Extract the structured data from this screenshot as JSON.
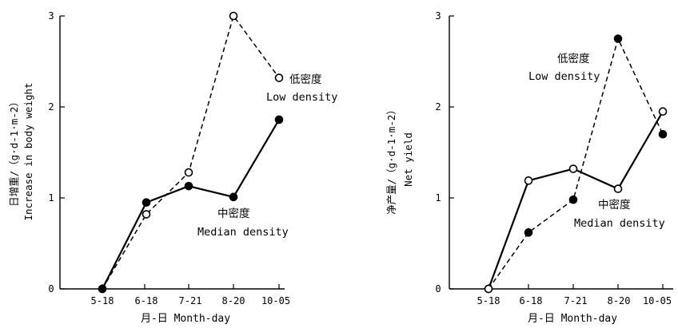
{
  "chart_data": [
    {
      "type": "line",
      "categories": [
        "5-18",
        "6-18",
        "7-21",
        "8-20",
        "10-05"
      ],
      "xlabel": "月-日 Month-day",
      "ylabel_cn": "日增重/（g·d-1·m-2）",
      "ylabel_en": "Increase in body weight",
      "ylim": [
        0,
        3
      ],
      "yticks": [
        "0",
        "1",
        "2",
        "3"
      ],
      "series": [
        {
          "name_cn": "低密度",
          "name_en": "Low density",
          "style": "dashed",
          "marker": "open-circle",
          "values": [
            0,
            0.82,
            1.28,
            3.0,
            2.32
          ]
        },
        {
          "name_cn": "中密度",
          "name_en": "Median density",
          "style": "solid",
          "marker": "filled-circle",
          "values": [
            0,
            0.95,
            1.13,
            1.01,
            1.86
          ]
        }
      ]
    },
    {
      "type": "line",
      "categories": [
        "5-18",
        "6-18",
        "7-21",
        "8-20",
        "10-05"
      ],
      "xlabel": "月-日 Month-day",
      "ylabel_cn": "净产量/（g·d-1·m-2）",
      "ylabel_en": "Net yield",
      "ylim": [
        0,
        3
      ],
      "yticks": [
        "0",
        "1",
        "2",
        "3"
      ],
      "series": [
        {
          "name_cn": "低密度",
          "name_en": "Low density",
          "style": "dashed",
          "marker": "filled-circle",
          "values": [
            0,
            0.62,
            0.98,
            2.75,
            1.7
          ]
        },
        {
          "name_cn": "中密度",
          "name_en": "Median density",
          "style": "solid",
          "marker": "open-circle",
          "values": [
            0,
            1.19,
            1.32,
            1.1,
            1.95
          ]
        }
      ]
    }
  ]
}
